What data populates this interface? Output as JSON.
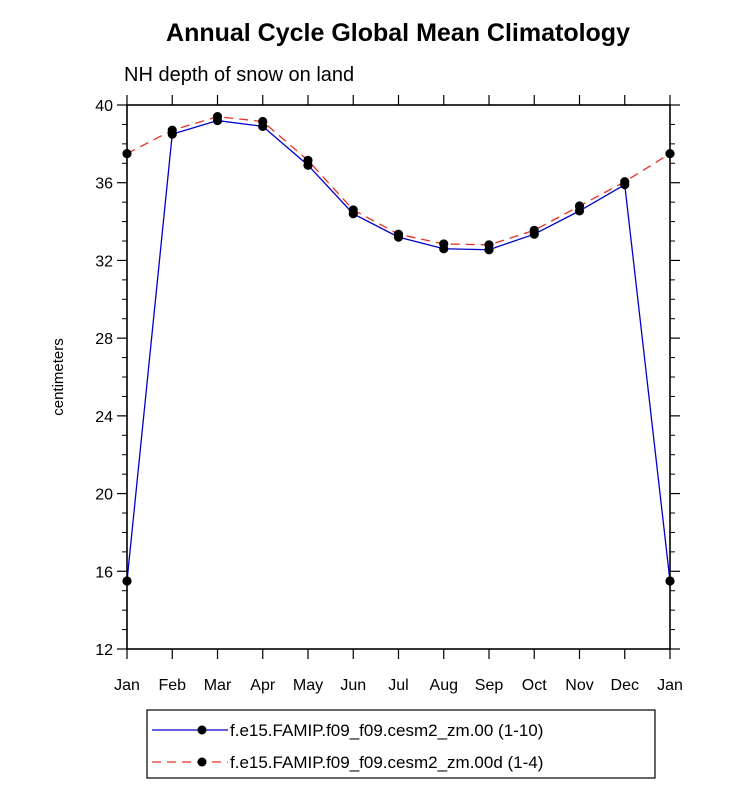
{
  "chart_data": {
    "type": "line",
    "title": "Annual Cycle Global Mean Climatology",
    "subtitle": "NH depth of snow on land",
    "xlabel": "",
    "ylabel": "centimeters",
    "categories": [
      "Jan",
      "Feb",
      "Mar",
      "Apr",
      "May",
      "Jun",
      "Jul",
      "Aug",
      "Sep",
      "Oct",
      "Nov",
      "Dec",
      "Jan"
    ],
    "ylim": [
      12,
      40
    ],
    "yticks": [
      12,
      16,
      20,
      24,
      28,
      32,
      36,
      40
    ],
    "ytick_labels": [
      "12",
      "16",
      "20",
      "24",
      "28",
      "32",
      "36",
      "40"
    ],
    "grid": false,
    "legend_position": "bottom",
    "series": [
      {
        "name": "f.e15.FAMIP.f09_f09.cesm2_zm.00 (1-10)",
        "color": "#0000cc",
        "dash": "solid",
        "marker_color": "#000000",
        "values": [
          15.5,
          38.5,
          39.2,
          38.9,
          36.9,
          34.4,
          33.2,
          32.6,
          32.55,
          33.35,
          34.55,
          35.9,
          15.5
        ]
      },
      {
        "name": "f.e15.FAMIP.f09_f09.cesm2_zm.00d (1-4)",
        "color": "#e8302a",
        "dash": "dashed",
        "marker_color": "#000000",
        "values": [
          37.5,
          38.7,
          39.4,
          39.15,
          37.15,
          34.6,
          33.35,
          32.85,
          32.8,
          33.55,
          34.8,
          36.05,
          37.5
        ]
      }
    ]
  }
}
